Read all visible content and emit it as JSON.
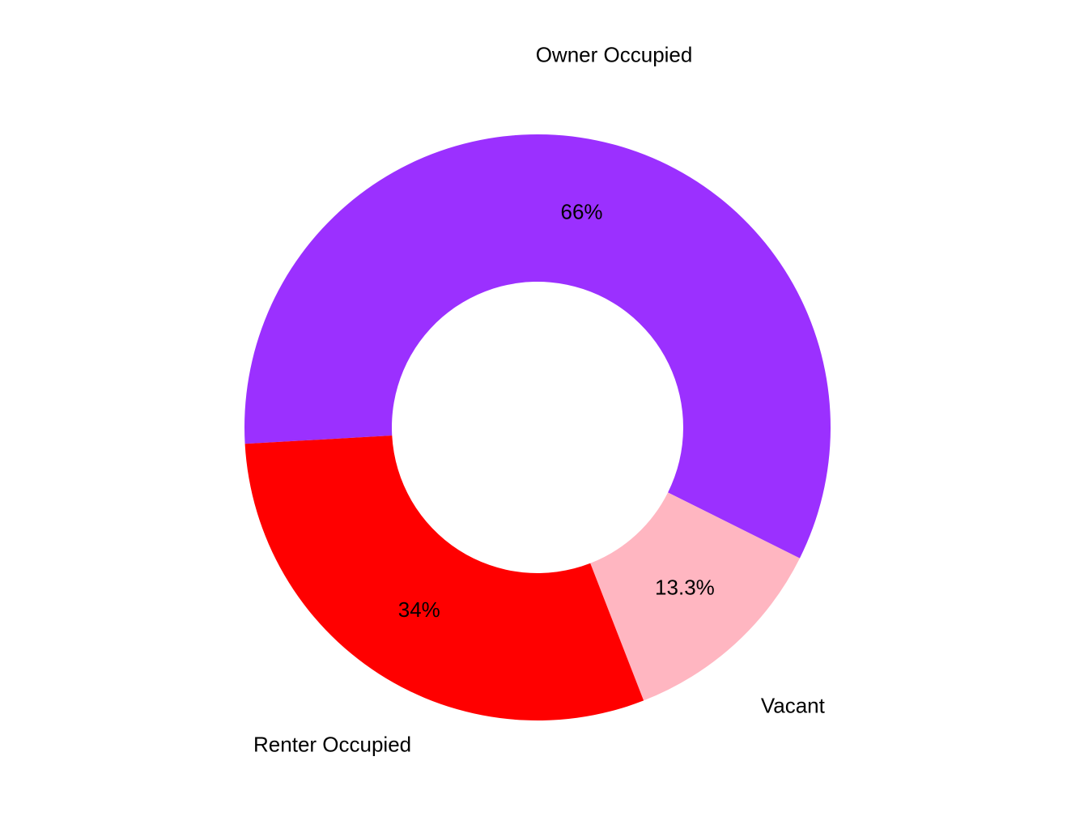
{
  "chart_data": {
    "type": "donut",
    "categories": [
      "Owner Occupied",
      "Vacant",
      "Renter Occupied"
    ],
    "values": [
      66,
      13.3,
      34
    ],
    "value_labels": [
      "66%",
      "13.3%",
      "34%"
    ],
    "colors": [
      "#9b30ff",
      "#ffb6c1",
      "#ff0000"
    ]
  }
}
